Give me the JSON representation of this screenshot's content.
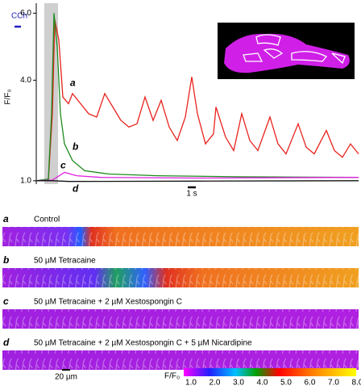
{
  "chart_data": {
    "type": "line",
    "y_label": "F/F₀",
    "stimulus": "CCh",
    "scale_bar": "1 s",
    "ylim": [
      0.9,
      6.2
    ],
    "yticks": [
      {
        "value": 1,
        "label": "1.0"
      },
      {
        "value": 4,
        "label": "4.0"
      },
      {
        "value": 6,
        "label": "6.0"
      }
    ],
    "xlim": [
      0,
      40
    ],
    "series": [
      {
        "name": "a",
        "color": "#e8221c",
        "x": [
          0,
          1.5,
          2.0,
          2.3,
          2.8,
          3.3,
          4.0,
          4.5,
          5.5,
          6.5,
          7.5,
          8.5,
          9.5,
          10.5,
          11.5,
          12.5,
          13.5,
          14.5,
          15.5,
          16.5,
          17.5,
          18.5,
          19.3,
          20,
          21,
          22,
          22.3,
          23.5,
          24.5,
          25.5,
          26.5,
          27.5,
          29,
          30,
          31,
          32.5,
          33.5,
          34.5,
          36,
          37,
          38,
          39,
          40
        ],
        "values": [
          1.0,
          1.0,
          3.0,
          5.8,
          5.2,
          3.5,
          3.3,
          3.6,
          3.3,
          3.0,
          2.9,
          3.6,
          3.2,
          2.8,
          2.6,
          2.7,
          3.5,
          2.8,
          3.4,
          2.6,
          2.2,
          2.9,
          4.1,
          3.0,
          2.1,
          2.4,
          3.2,
          2.3,
          1.9,
          3.0,
          2.2,
          1.9,
          2.9,
          2.1,
          1.8,
          2.7,
          2.0,
          1.8,
          2.5,
          1.9,
          1.7,
          2.1,
          1.8
        ]
      },
      {
        "name": "b",
        "color": "#1e8a1e",
        "x": [
          0,
          1.5,
          1.9,
          2.2,
          2.6,
          3.0,
          3.5,
          4.5,
          6,
          9,
          15,
          25,
          40
        ],
        "values": [
          1.0,
          1.05,
          3.0,
          6.0,
          5.0,
          3.0,
          2.1,
          1.6,
          1.3,
          1.2,
          1.15,
          1.12,
          1.1
        ]
      },
      {
        "name": "c",
        "color": "#e020e0",
        "x": [
          0,
          2,
          3.5,
          5,
          8,
          20,
          40
        ],
        "values": [
          1.0,
          1.02,
          1.25,
          1.15,
          1.1,
          1.08,
          1.1
        ]
      },
      {
        "name": "d",
        "color": "#111111",
        "x": [
          0,
          2,
          4,
          20,
          40
        ],
        "values": [
          1.0,
          1.0,
          0.98,
          0.99,
          1.0
        ]
      }
    ]
  },
  "panels": [
    {
      "letter": "a",
      "label": "Control"
    },
    {
      "letter": "b",
      "label": "50 µM Tetracaine"
    },
    {
      "letter": "c",
      "label": "50 µM Tetracaine + 2 µM Xestospongin C"
    },
    {
      "letter": "d",
      "label": "50 µM Tetracaine + 2 µM Xestospongin C + 5 µM Nicardipine"
    }
  ],
  "image_scale": "20 µm",
  "colorbar": {
    "label": "F/F₀",
    "ticks": [
      "1.0",
      "2.0",
      "3.0",
      "4.0",
      "5.0",
      "6.0",
      "7.0",
      "8.0"
    ]
  }
}
